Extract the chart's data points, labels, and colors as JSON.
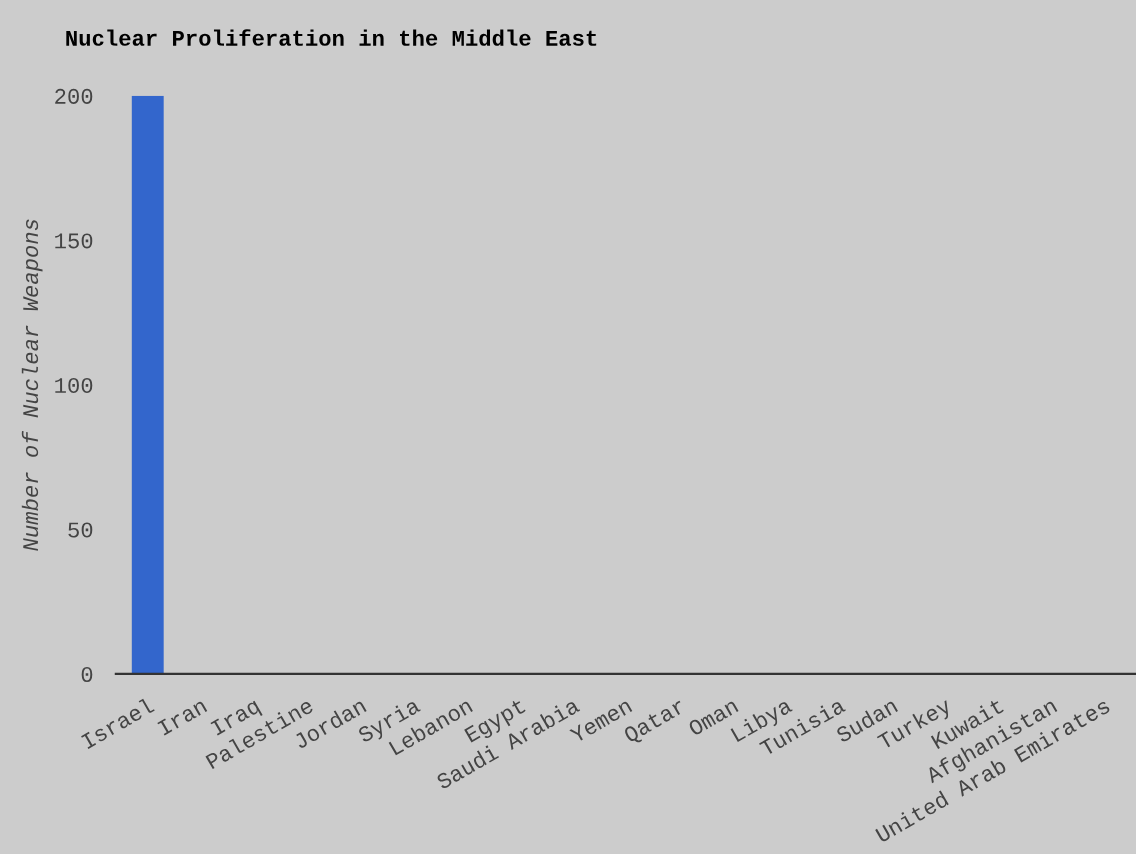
{
  "chart_data": {
    "type": "bar",
    "title": "Nuclear Proliferation in the Middle East",
    "ylabel": "Number of Nuclear Weapons",
    "categories": [
      "Israel",
      "Iran",
      "Iraq",
      "Palestine",
      "Jordan",
      "Syria",
      "Lebanon",
      "Egypt",
      "Saudi Arabia",
      "Yemen",
      "Qatar",
      "Oman",
      "Libya",
      "Tunisia",
      "Sudan",
      "Turkey",
      "Kuwait",
      "Afghanistan",
      "United Arab Emirates"
    ],
    "values": [
      200,
      0,
      0,
      0,
      0,
      0,
      0,
      0,
      0,
      0,
      0,
      0,
      0,
      0,
      0,
      0,
      0,
      0,
      0
    ],
    "color": "#3366cc",
    "ylim": [
      0,
      200
    ],
    "yticks": [
      0,
      50,
      100,
      150,
      200
    ],
    "grid": false,
    "legend": false
  }
}
